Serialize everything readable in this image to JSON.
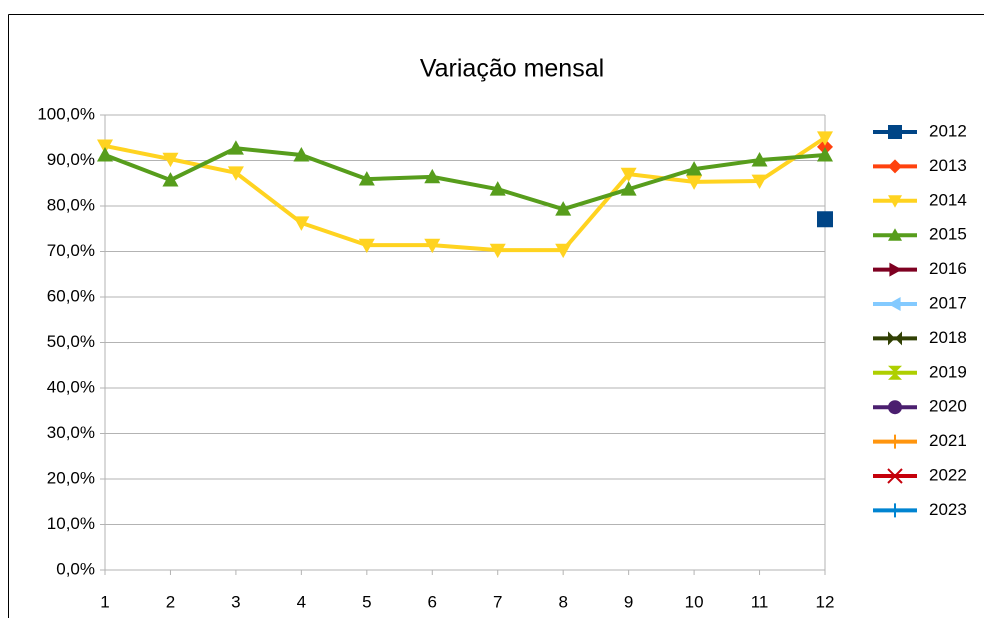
{
  "chart_data": {
    "type": "line",
    "title": "Variação mensal",
    "categories": [
      "1",
      "2",
      "3",
      "4",
      "5",
      "6",
      "7",
      "8",
      "9",
      "10",
      "11",
      "12"
    ],
    "ylim": [
      0,
      100
    ],
    "yticks": [
      {
        "value": 0,
        "label": "0,0%"
      },
      {
        "value": 10,
        "label": "10,0%"
      },
      {
        "value": 20,
        "label": "20,0%"
      },
      {
        "value": 30,
        "label": "30,0%"
      },
      {
        "value": 40,
        "label": "40,0%"
      },
      {
        "value": 50,
        "label": "50,0%"
      },
      {
        "value": 60,
        "label": "60,0%"
      },
      {
        "value": 70,
        "label": "70,0%"
      },
      {
        "value": 80,
        "label": "80,0%"
      },
      {
        "value": 90,
        "label": "90,0%"
      },
      {
        "value": 100,
        "label": "100,0%"
      }
    ],
    "grid": true,
    "legend": "right",
    "series": [
      {
        "name": "2012",
        "color": "#004586",
        "marker": "square",
        "values": [
          null,
          null,
          null,
          null,
          null,
          null,
          null,
          null,
          null,
          null,
          null,
          77.1
        ]
      },
      {
        "name": "2013",
        "color": "#ff420e",
        "marker": "diamond",
        "values": [
          null,
          null,
          null,
          null,
          null,
          null,
          null,
          null,
          null,
          null,
          null,
          93.0
        ]
      },
      {
        "name": "2014",
        "color": "#ffd320",
        "marker": "down",
        "values": [
          93.2,
          90.3,
          87.3,
          76.3,
          71.4,
          71.4,
          70.3,
          70.3,
          87.0,
          85.3,
          85.5,
          95.0
        ]
      },
      {
        "name": "2015",
        "color": "#579d1c",
        "marker": "up",
        "values": [
          91.2,
          85.7,
          92.7,
          91.2,
          85.9,
          86.4,
          83.7,
          79.3,
          83.7,
          88.1,
          90.1,
          91.2
        ]
      },
      {
        "name": "2016",
        "color": "#7e0021",
        "marker": "right",
        "values": [
          null,
          null,
          null,
          null,
          null,
          null,
          null,
          null,
          null,
          null,
          null,
          null
        ]
      },
      {
        "name": "2017",
        "color": "#83caff",
        "marker": "left",
        "values": [
          null,
          null,
          null,
          null,
          null,
          null,
          null,
          null,
          null,
          null,
          null,
          null
        ]
      },
      {
        "name": "2018",
        "color": "#314004",
        "marker": "bowtie",
        "values": [
          null,
          null,
          null,
          null,
          null,
          null,
          null,
          null,
          null,
          null,
          null,
          null
        ]
      },
      {
        "name": "2019",
        "color": "#aecf00",
        "marker": "hourglass",
        "values": [
          null,
          null,
          null,
          null,
          null,
          null,
          null,
          null,
          null,
          null,
          null,
          null
        ]
      },
      {
        "name": "2020",
        "color": "#4b1f6f",
        "marker": "circle",
        "values": [
          null,
          null,
          null,
          null,
          null,
          null,
          null,
          null,
          null,
          null,
          null,
          null
        ]
      },
      {
        "name": "2021",
        "color": "#ff950e",
        "marker": "plus",
        "values": [
          null,
          null,
          null,
          null,
          null,
          null,
          null,
          null,
          null,
          null,
          null,
          null
        ]
      },
      {
        "name": "2022",
        "color": "#c5000b",
        "marker": "x",
        "values": [
          null,
          null,
          null,
          null,
          null,
          null,
          null,
          null,
          null,
          null,
          null,
          null
        ]
      },
      {
        "name": "2023",
        "color": "#0084d1",
        "marker": "plus",
        "values": [
          null,
          null,
          null,
          null,
          null,
          null,
          null,
          null,
          null,
          null,
          null,
          null
        ]
      }
    ]
  }
}
